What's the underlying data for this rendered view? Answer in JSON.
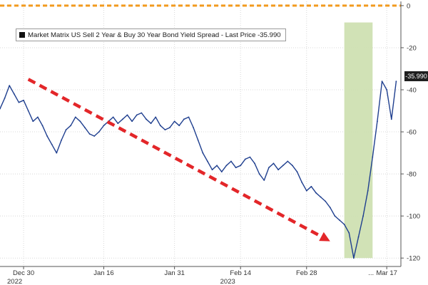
{
  "chart_data": {
    "type": "line",
    "title": "Market Matrix US Sell 2 Year & Buy 30 Year Bond Yield Spread - Last Price -35.990",
    "legend": "Market Matrix US Sell 2 Year & Buy 30 Year Bond Yield Spread - Last Price -35.990",
    "last_price_label": "-35.990",
    "ylim": [
      -124,
      2
    ],
    "y_ticks": [
      0,
      -20,
      -40,
      -60,
      -80,
      -100,
      -120
    ],
    "y_tick_labels": [
      "0",
      "-20",
      "-40",
      "-60",
      "-80",
      "-100",
      "-120"
    ],
    "xlim": [
      "2022-12-25",
      "2023-03-20"
    ],
    "x_ticks": [
      {
        "date": "2022-12-30",
        "label": "Dec 30"
      },
      {
        "date": "2023-01-16",
        "label": "Jan 16"
      },
      {
        "date": "2023-01-31",
        "label": "Jan 31"
      },
      {
        "date": "2023-02-14",
        "label": "Feb 14"
      },
      {
        "date": "2023-02-28",
        "label": "Feb 28"
      },
      {
        "date": "2023-03-17",
        "label": "Mar 17"
      }
    ],
    "x_tick_extra_label": "...",
    "x_year_labels": [
      {
        "date": "2022-12-25",
        "label": "2022"
      },
      {
        "date": "2023-01-31",
        "label": "2023"
      }
    ],
    "grid": true,
    "series": [
      {
        "color": "#1f3f8f",
        "points": [
          [
            "2022-12-25",
            -49
          ],
          [
            "2022-12-26",
            -44
          ],
          [
            "2022-12-27",
            -38
          ],
          [
            "2022-12-28",
            -42
          ],
          [
            "2022-12-29",
            -46
          ],
          [
            "2022-12-30",
            -45
          ],
          [
            "2022-12-31",
            -50
          ],
          [
            "2023-01-01",
            -55
          ],
          [
            "2023-01-02",
            -53
          ],
          [
            "2023-01-03",
            -57
          ],
          [
            "2023-01-04",
            -62
          ],
          [
            "2023-01-05",
            -66
          ],
          [
            "2023-01-06",
            -70
          ],
          [
            "2023-01-07",
            -64
          ],
          [
            "2023-01-08",
            -59
          ],
          [
            "2023-01-09",
            -57
          ],
          [
            "2023-01-10",
            -53
          ],
          [
            "2023-01-11",
            -55
          ],
          [
            "2023-01-12",
            -58
          ],
          [
            "2023-01-13",
            -61
          ],
          [
            "2023-01-14",
            -62
          ],
          [
            "2023-01-15",
            -60
          ],
          [
            "2023-01-16",
            -57
          ],
          [
            "2023-01-17",
            -55
          ],
          [
            "2023-01-18",
            -53
          ],
          [
            "2023-01-19",
            -56
          ],
          [
            "2023-01-20",
            -54
          ],
          [
            "2023-01-21",
            -52
          ],
          [
            "2023-01-22",
            -55
          ],
          [
            "2023-01-23",
            -52
          ],
          [
            "2023-01-24",
            -51
          ],
          [
            "2023-01-25",
            -54
          ],
          [
            "2023-01-26",
            -56
          ],
          [
            "2023-01-27",
            -53
          ],
          [
            "2023-01-28",
            -57
          ],
          [
            "2023-01-29",
            -59
          ],
          [
            "2023-01-30",
            -58
          ],
          [
            "2023-01-31",
            -55
          ],
          [
            "2023-02-01",
            -57
          ],
          [
            "2023-02-02",
            -54
          ],
          [
            "2023-02-03",
            -53
          ],
          [
            "2023-02-04",
            -58
          ],
          [
            "2023-02-05",
            -64
          ],
          [
            "2023-02-06",
            -70
          ],
          [
            "2023-02-07",
            -74
          ],
          [
            "2023-02-08",
            -78
          ],
          [
            "2023-02-09",
            -76
          ],
          [
            "2023-02-10",
            -79
          ],
          [
            "2023-02-11",
            -76
          ],
          [
            "2023-02-12",
            -74
          ],
          [
            "2023-02-13",
            -77
          ],
          [
            "2023-02-14",
            -76
          ],
          [
            "2023-02-15",
            -73
          ],
          [
            "2023-02-16",
            -72
          ],
          [
            "2023-02-17",
            -75
          ],
          [
            "2023-02-18",
            -80
          ],
          [
            "2023-02-19",
            -83
          ],
          [
            "2023-02-20",
            -77
          ],
          [
            "2023-02-21",
            -75
          ],
          [
            "2023-02-22",
            -78
          ],
          [
            "2023-02-23",
            -76
          ],
          [
            "2023-02-24",
            -74
          ],
          [
            "2023-02-25",
            -76
          ],
          [
            "2023-02-26",
            -79
          ],
          [
            "2023-02-27",
            -84
          ],
          [
            "2023-02-28",
            -88
          ],
          [
            "2023-03-01",
            -86
          ],
          [
            "2023-03-02",
            -89
          ],
          [
            "2023-03-03",
            -91
          ],
          [
            "2023-03-04",
            -93
          ],
          [
            "2023-03-05",
            -96
          ],
          [
            "2023-03-06",
            -100
          ],
          [
            "2023-03-07",
            -102
          ],
          [
            "2023-03-08",
            -104
          ],
          [
            "2023-03-09",
            -108
          ],
          [
            "2023-03-10",
            -120
          ],
          [
            "2023-03-11",
            -110
          ],
          [
            "2023-03-12",
            -100
          ],
          [
            "2023-03-13",
            -88
          ],
          [
            "2023-03-14",
            -72
          ],
          [
            "2023-03-15",
            -55
          ],
          [
            "2023-03-16",
            -36
          ],
          [
            "2023-03-17",
            -40
          ],
          [
            "2023-03-18",
            -54
          ],
          [
            "2023-03-19",
            -36
          ]
        ]
      }
    ],
    "annotations": [
      {
        "type": "dashed-arrow",
        "color": "#e32629",
        "from": [
          "2022-12-31",
          -35
        ],
        "to": [
          "2023-03-05",
          -112
        ]
      },
      {
        "type": "shaded-region",
        "color": "#cfe0b2",
        "x_from": "2023-03-08",
        "x_to": "2023-03-14",
        "y_from": -120,
        "y_to": -8
      },
      {
        "type": "dashed-hline",
        "color": "#f29a1e",
        "y": 0
      }
    ]
  }
}
